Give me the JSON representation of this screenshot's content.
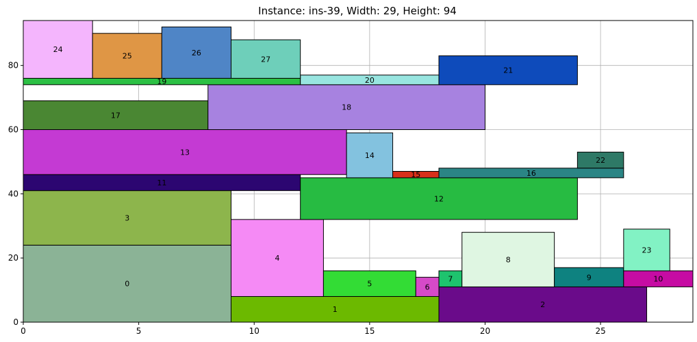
{
  "chart_data": {
    "type": "rectangle-packing",
    "title": "Instance: ins-39, Width: 29, Height: 94",
    "xlim": [
      0,
      29
    ],
    "ylim": [
      0,
      94
    ],
    "xticks": [
      0,
      5,
      10,
      15,
      20,
      25
    ],
    "yticks": [
      0,
      20,
      40,
      60,
      80
    ],
    "grid": true,
    "rectangles": [
      {
        "id": "0",
        "x": 0,
        "y": 0,
        "w": 9,
        "h": 24,
        "color": "#8bb396"
      },
      {
        "id": "1",
        "x": 9,
        "y": 0,
        "w": 9,
        "h": 8,
        "color": "#6cb900"
      },
      {
        "id": "2",
        "x": 18,
        "y": 0,
        "w": 9,
        "h": 11,
        "color": "#6a0b8a"
      },
      {
        "id": "3",
        "x": 0,
        "y": 24,
        "w": 9,
        "h": 17,
        "color": "#8db54c"
      },
      {
        "id": "4",
        "x": 9,
        "y": 8,
        "w": 4,
        "h": 24,
        "color": "#f58af5"
      },
      {
        "id": "5",
        "x": 13,
        "y": 8,
        "w": 4,
        "h": 8,
        "color": "#33dc35"
      },
      {
        "id": "6",
        "x": 17,
        "y": 8,
        "w": 1,
        "h": 6,
        "color": "#d64ac8"
      },
      {
        "id": "7",
        "x": 18,
        "y": 11,
        "w": 1,
        "h": 5,
        "color": "#1ec36e"
      },
      {
        "id": "8",
        "x": 19,
        "y": 11,
        "w": 4,
        "h": 17,
        "color": "#dff6e2"
      },
      {
        "id": "9",
        "x": 23,
        "y": 11,
        "w": 3,
        "h": 6,
        "color": "#0e8280"
      },
      {
        "id": "10",
        "x": 26,
        "y": 11,
        "w": 3,
        "h": 5,
        "color": "#c60ca3"
      },
      {
        "id": "11",
        "x": 0,
        "y": 41,
        "w": 12,
        "h": 5,
        "color": "#2c0671"
      },
      {
        "id": "12",
        "x": 12,
        "y": 32,
        "w": 12,
        "h": 13,
        "color": "#27bb42"
      },
      {
        "id": "13",
        "x": 0,
        "y": 46,
        "w": 14,
        "h": 14,
        "color": "#c43ad3"
      },
      {
        "id": "14",
        "x": 14,
        "y": 45,
        "w": 2,
        "h": 14,
        "color": "#83c2df"
      },
      {
        "id": "15",
        "x": 16,
        "y": 45,
        "w": 2,
        "h": 2,
        "color": "#d8301a"
      },
      {
        "id": "16",
        "x": 18,
        "y": 45,
        "w": 8,
        "h": 3,
        "color": "#2b8585"
      },
      {
        "id": "17",
        "x": 0,
        "y": 60,
        "w": 8,
        "h": 9,
        "color": "#4a8733"
      },
      {
        "id": "18",
        "x": 8,
        "y": 60,
        "w": 12,
        "h": 14,
        "color": "#a782e0"
      },
      {
        "id": "19",
        "x": 0,
        "y": 74,
        "w": 12,
        "h": 2,
        "color": "#2cc044"
      },
      {
        "id": "20",
        "x": 12,
        "y": 74,
        "w": 6,
        "h": 3,
        "color": "#98e5e0"
      },
      {
        "id": "21",
        "x": 18,
        "y": 74,
        "w": 6,
        "h": 9,
        "color": "#0e4bbb"
      },
      {
        "id": "22",
        "x": 24,
        "y": 48,
        "w": 2,
        "h": 5,
        "color": "#2e7966"
      },
      {
        "id": "23",
        "x": 26,
        "y": 16,
        "w": 2,
        "h": 13,
        "color": "#82f2c4"
      },
      {
        "id": "24",
        "x": 0,
        "y": 76,
        "w": 3,
        "h": 18,
        "color": "#f4b5fd"
      },
      {
        "id": "25",
        "x": 3,
        "y": 76,
        "w": 3,
        "h": 14,
        "color": "#df9645"
      },
      {
        "id": "26",
        "x": 6,
        "y": 76,
        "w": 3,
        "h": 16,
        "color": "#4f85c6"
      },
      {
        "id": "27",
        "x": 9,
        "y": 76,
        "w": 3,
        "h": 12,
        "color": "#6ecfba"
      }
    ]
  }
}
